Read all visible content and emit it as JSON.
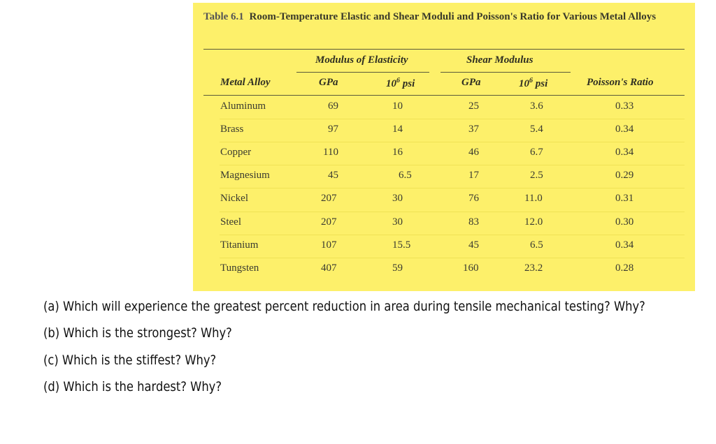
{
  "table": {
    "number": "Table 6.1",
    "title": "Room-Temperature Elastic and Shear Moduli and Poisson's Ratio for Various Metal Alloys",
    "group_headers": {
      "elastic": "Modulus of Elasticity",
      "shear": "Shear Modulus"
    },
    "column_headers": {
      "alloy": "Metal Alloy",
      "gpa1": "GPa",
      "psi1_base": "10",
      "psi1_exp": "6",
      "psi1_unit": " psi",
      "gpa2": "GPa",
      "psi2_base": "10",
      "psi2_exp": "6",
      "psi2_unit": " psi",
      "poisson": "Poisson's Ratio"
    },
    "rows": [
      {
        "alloy": "Aluminum",
        "e_gpa": "69",
        "e_psi": "10",
        "g_gpa": "25",
        "g_psi": "3.6",
        "nu": "0.33"
      },
      {
        "alloy": "Brass",
        "e_gpa": "97",
        "e_psi": "14",
        "g_gpa": "37",
        "g_psi": "5.4",
        "nu": "0.34"
      },
      {
        "alloy": "Copper",
        "e_gpa": "110",
        "e_psi": "16",
        "g_gpa": "46",
        "g_psi": "6.7",
        "nu": "0.34"
      },
      {
        "alloy": "Magnesium",
        "e_gpa": "45",
        "e_psi": "6.5",
        "g_gpa": "17",
        "g_psi": "2.5",
        "nu": "0.29"
      },
      {
        "alloy": "Nickel",
        "e_gpa": "207",
        "e_psi": "30",
        "g_gpa": "76",
        "g_psi": "11.0",
        "nu": "0.31"
      },
      {
        "alloy": "Steel",
        "e_gpa": "207",
        "e_psi": "30",
        "g_gpa": "83",
        "g_psi": "12.0",
        "nu": "0.30"
      },
      {
        "alloy": "Titanium",
        "e_gpa": "107",
        "e_psi": "15.5",
        "g_gpa": "45",
        "g_psi": "6.5",
        "nu": "0.34"
      },
      {
        "alloy": "Tungsten",
        "e_gpa": "407",
        "e_psi": "59",
        "g_gpa": "160",
        "g_psi": "23.2",
        "nu": "0.28"
      }
    ]
  },
  "questions": [
    "(a) Which will experience the greatest percent reduction in area during tensile mechanical testing? Why?",
    "(b) Which is the strongest? Why?",
    "(c) Which is the stiffest? Why?",
    "(d) Which is the hardest? Why?"
  ],
  "colors": {
    "panel_background": "#fdf06a"
  }
}
